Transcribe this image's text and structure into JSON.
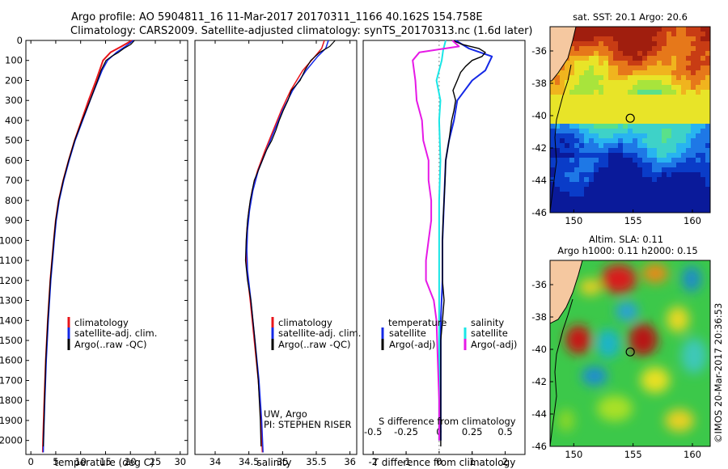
{
  "header": {
    "line1": "Argo profile: AO 5904811_16 11-Mar-2017 20170311_1166 40.162S 154.758E",
    "line2": "Climatology: CARS2009. Satellite-adjusted climatology: synTS_20170313.nc (1.6d later)"
  },
  "colors": {
    "climatology": "#e8141a",
    "satellite": "#1428e6",
    "argo": "#000000",
    "sat_salinity": "#19e6e6",
    "argo_salinity": "#e619e6",
    "land": "#f5c8a0"
  },
  "footer": {
    "stamp": "©IMOS 20-Mar-2017 20:36:53"
  },
  "chart_data": [
    {
      "type": "line",
      "id": "temperature",
      "xlabel": "temperature (deg C)",
      "ylabel": "",
      "xlim": [
        -1,
        31.5
      ],
      "ylim": [
        2070,
        0
      ],
      "xticks": [
        "0",
        "5",
        "10",
        "15",
        "20",
        "25",
        "30"
      ],
      "yticks": [
        "0",
        "100",
        "200",
        "300",
        "400",
        "500",
        "600",
        "700",
        "800",
        "900",
        "1000",
        "1100",
        "1200",
        "1300",
        "1400",
        "1500",
        "1600",
        "1700",
        "1800",
        "1900",
        "2000"
      ],
      "legend": [
        "climatology",
        "satellite-adj. clim.",
        "Argo(..raw -QC)"
      ],
      "series": [
        {
          "name": "climatology",
          "depth": [
            0,
            30,
            60,
            100,
            150,
            200,
            300,
            400,
            500,
            600,
            700,
            800,
            900,
            1000,
            1200,
            1400,
            1600,
            1800,
            2000,
            2060
          ],
          "values": [
            20.3,
            18.2,
            16.0,
            14.5,
            13.8,
            13.1,
            11.6,
            10.2,
            8.8,
            7.6,
            6.5,
            5.6,
            5.0,
            4.6,
            3.9,
            3.4,
            3.0,
            2.7,
            2.45,
            2.4
          ]
        },
        {
          "name": "satellite-adj. clim.",
          "depth": [
            0,
            30,
            60,
            100,
            150,
            200,
            300,
            400,
            500,
            600,
            700,
            800,
            900,
            1000,
            1200,
            1400,
            1600,
            1800,
            2000,
            2060
          ],
          "values": [
            20.6,
            19.0,
            17.2,
            15.4,
            14.3,
            13.5,
            11.9,
            10.4,
            8.9,
            7.7,
            6.6,
            5.7,
            5.1,
            4.7,
            4.0,
            3.5,
            3.1,
            2.8,
            2.55,
            2.5
          ]
        },
        {
          "name": "Argo(..raw -QC)",
          "depth": [
            0,
            20,
            40,
            60,
            80,
            100,
            150,
            200,
            300,
            400,
            500,
            600,
            700,
            800,
            900,
            1000,
            1200,
            1400,
            1600,
            1800,
            2000,
            2030
          ],
          "values": [
            20.8,
            20.1,
            18.7,
            17.6,
            16.2,
            15.1,
            14.1,
            13.4,
            11.9,
            10.3,
            8.8,
            7.6,
            6.5,
            5.6,
            5.0,
            4.6,
            3.9,
            3.4,
            3.0,
            2.75,
            2.55,
            2.5
          ]
        }
      ]
    },
    {
      "type": "line",
      "id": "salinity",
      "xlabel": "salinity",
      "ylabel": "",
      "xlim": [
        33.7,
        36.1
      ],
      "ylim": [
        2070,
        0
      ],
      "xticks": [
        "34",
        "34.5",
        "35",
        "35.5",
        "36"
      ],
      "legend": [
        "climatology",
        "satellite-adj. clim.",
        "Argo(..raw -QC)"
      ],
      "annotation": [
        "UW, Argo",
        "PI: STEPHEN RISER"
      ],
      "series": [
        {
          "name": "climatology",
          "depth": [
            0,
            40,
            80,
            150,
            250,
            350,
            450,
            550,
            650,
            750,
            850,
            950,
            1050,
            1150,
            1300,
            1500,
            1700,
            1900,
            2060
          ],
          "values": [
            35.62,
            35.58,
            35.48,
            35.3,
            35.12,
            34.98,
            34.86,
            34.74,
            34.63,
            34.55,
            34.5,
            34.47,
            34.46,
            34.47,
            34.52,
            34.58,
            34.64,
            34.68,
            34.7
          ]
        },
        {
          "name": "satellite-adj. clim.",
          "depth": [
            0,
            40,
            80,
            150,
            250,
            350,
            450,
            550,
            650,
            750,
            850,
            950,
            1050,
            1150,
            1300,
            1500,
            1700,
            1900,
            2060
          ],
          "values": [
            35.68,
            35.64,
            35.52,
            35.35,
            35.15,
            35.0,
            34.88,
            34.76,
            34.64,
            34.56,
            34.51,
            34.48,
            34.47,
            34.48,
            34.53,
            34.59,
            34.65,
            34.69,
            34.71
          ]
        },
        {
          "name": "Argo(..raw -QC)",
          "depth": [
            0,
            30,
            60,
            100,
            150,
            200,
            250,
            300,
            350,
            400,
            450,
            500,
            550,
            600,
            650,
            700,
            800,
            900,
            1000,
            1100,
            1200,
            1300,
            1500,
            1700,
            1900,
            2030
          ],
          "values": [
            35.78,
            35.7,
            35.55,
            35.42,
            35.33,
            35.26,
            35.13,
            35.08,
            35.01,
            34.95,
            34.9,
            34.84,
            34.76,
            34.7,
            34.64,
            34.58,
            34.52,
            34.48,
            34.46,
            34.45,
            34.48,
            34.53,
            34.59,
            34.64,
            34.67,
            34.68
          ]
        }
      ]
    },
    {
      "type": "line",
      "id": "differences",
      "xlabel": "T difference from climatology",
      "xlabel_top": "S difference from climatology",
      "xlim": [
        -2.3,
        2.6
      ],
      "ylim": [
        2070,
        0
      ],
      "xticks": [
        "-2",
        "-1",
        "0",
        "1",
        "2"
      ],
      "sticks": [
        "-0.5",
        "-0.25",
        "0",
        "0.25",
        "0.5"
      ],
      "legend_headers": [
        "temperature",
        "salinity"
      ],
      "legend": [
        "satellite",
        "Argo(-adj)",
        "satellite",
        "Argo(-adj)"
      ],
      "series": [
        {
          "name": "temperature satellite",
          "depth": [
            0,
            40,
            80,
            150,
            200,
            300,
            400,
            500,
            600,
            800,
            1000,
            1200,
            1400,
            1600,
            1800,
            2000
          ],
          "values": [
            0.5,
            0.9,
            1.6,
            1.4,
            1.0,
            0.55,
            0.45,
            0.3,
            0.2,
            0.15,
            0.1,
            0.1,
            0.05,
            0.05,
            0.05,
            0.05
          ]
        },
        {
          "name": "temperature Argo(-adj)",
          "depth": [
            0,
            20,
            40,
            60,
            80,
            100,
            130,
            160,
            200,
            250,
            300,
            350,
            400,
            500,
            600,
            700,
            800,
            900,
            1000,
            1100,
            1200,
            1300,
            1400,
            1500,
            1600,
            1800,
            2000,
            2030
          ],
          "values": [
            0.4,
            0.7,
            1.2,
            1.4,
            1.3,
            1.0,
            0.8,
            0.65,
            0.55,
            0.42,
            0.5,
            0.45,
            0.38,
            0.3,
            0.2,
            0.18,
            0.15,
            0.12,
            0.1,
            0.1,
            0.1,
            0.15,
            0.1,
            0.05,
            0.05,
            0.05,
            0.05,
            0.05
          ]
        },
        {
          "name": "salinity satellite",
          "depth": [
            0,
            50,
            100,
            200,
            300,
            400,
            600,
            800,
            1000,
            1200,
            1400,
            1600,
            1800,
            2000
          ],
          "values": [
            0.05,
            0.03,
            0.02,
            -0.02,
            0.01,
            0.0,
            0.01,
            0.0,
            0.0,
            0.0,
            0.0,
            0.0,
            0.0,
            0.0
          ]
        },
        {
          "name": "salinity Argo(-adj)",
          "depth": [
            0,
            30,
            60,
            100,
            200,
            300,
            400,
            500,
            600,
            700,
            800,
            900,
            1000,
            1100,
            1200,
            1300,
            1400,
            1600,
            1800,
            2000
          ],
          "values": [
            0.1,
            0.15,
            -0.15,
            -0.2,
            -0.18,
            -0.17,
            -0.13,
            -0.12,
            -0.08,
            -0.08,
            -0.06,
            -0.06,
            -0.08,
            -0.1,
            -0.1,
            -0.04,
            -0.02,
            -0.01,
            0.0,
            0.0
          ]
        }
      ]
    },
    {
      "type": "heatmap",
      "id": "sst_map",
      "title": "sat. SST: 20.1  Argo: 20.6",
      "xlim": [
        148,
        161.5
      ],
      "ylim": [
        -46,
        -34.5
      ],
      "xticks": [
        "150",
        "155",
        "160"
      ],
      "yticks": [
        "-36",
        "-38",
        "-40",
        "-42",
        "-44",
        "-46"
      ],
      "argo_position": {
        "lon": 154.76,
        "lat": -40.16
      }
    },
    {
      "type": "heatmap",
      "id": "sla_map",
      "title": "Altim. SLA: 0.11",
      "subtitle": "Argo h1000: 0.11 h2000: 0.15",
      "xlim": [
        148,
        161.5
      ],
      "ylim": [
        -46,
        -34.5
      ],
      "xticks": [
        "150",
        "155",
        "160"
      ],
      "yticks": [
        "-36",
        "-38",
        "-40",
        "-42",
        "-44",
        "-46"
      ],
      "argo_position": {
        "lon": 154.76,
        "lat": -40.16
      }
    }
  ]
}
